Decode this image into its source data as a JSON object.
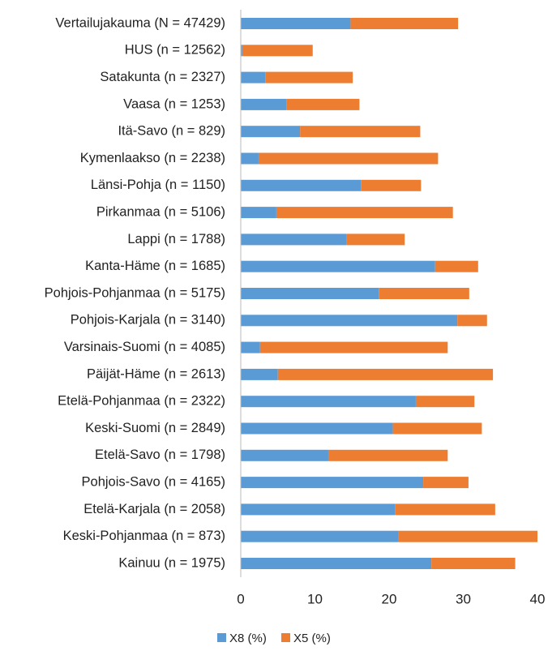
{
  "chart_data": {
    "type": "stacked-bar-horizontal",
    "categories": [
      "Vertailujakauma (N = 47429)",
      "HUS (n = 12562)",
      "Satakunta (n = 2327)",
      "Vaasa (n = 1253)",
      "Itä-Savo (n = 829)",
      "Kymenlaakso (n = 2238)",
      "Länsi-Pohja (n = 1150)",
      "Pirkanmaa (n = 5106)",
      "Lappi (n = 1788)",
      "Kanta-Häme (n = 1685)",
      "Pohjois-Pohjanmaa (n = 5175)",
      "Pohjois-Karjala (n = 3140)",
      "Varsinais-Suomi (n = 4085)",
      "Päijät-Häme (n = 2613)",
      "Etelä-Pohjanmaa (n = 2322)",
      "Keski-Suomi (n = 2849)",
      "Etelä-Savo (n = 1798)",
      "Pohjois-Savo (n = 4165)",
      "Etelä-Karjala (n = 2058)",
      "Keski-Pohjanmaa (n = 873)",
      "Kainuu (n = 1975)"
    ],
    "series": [
      {
        "name": "X8 (%)",
        "color": "#5b9bd5",
        "values": [
          14.8,
          0.2,
          3.3,
          6.2,
          8.0,
          2.4,
          16.2,
          4.8,
          14.3,
          26.2,
          18.6,
          29.2,
          2.6,
          5.0,
          23.6,
          20.5,
          11.8,
          24.6,
          20.8,
          21.3,
          25.7
        ]
      },
      {
        "name": "X5 (%)",
        "color": "#ed7d31",
        "values": [
          14.5,
          9.5,
          11.8,
          9.8,
          16.2,
          24.2,
          8.1,
          23.8,
          7.8,
          5.8,
          12.2,
          4.0,
          25.3,
          29.0,
          7.9,
          12.0,
          16.1,
          6.1,
          13.5,
          18.7,
          11.3
        ]
      }
    ],
    "xlim": [
      0,
      40
    ],
    "xticks": [
      0,
      10,
      20,
      30,
      40
    ],
    "grid": false
  }
}
